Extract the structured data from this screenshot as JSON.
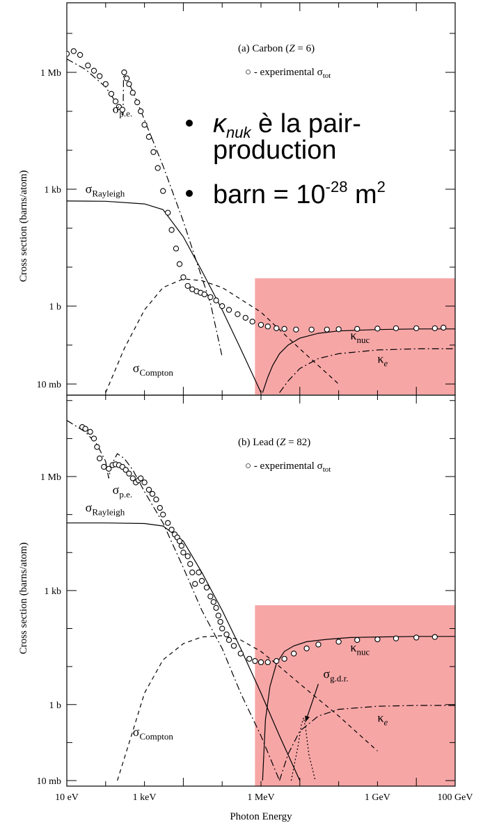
{
  "colors": {
    "highlight": "#f7a1a1",
    "ink": "#000000",
    "background": "#ffffff"
  },
  "bullets": [
    {
      "symbol": "κ",
      "sub": "nuk",
      "text": " è la pair-",
      "line2": "production"
    },
    {
      "text": "barn = 10",
      "sup": "-28",
      "text2": " m",
      "sup2": "2"
    }
  ],
  "x_axis": {
    "label": "Photon Energy",
    "ticks": [
      "10 eV",
      "1 keV",
      "1 MeV",
      "1 GeV",
      "100 GeV"
    ]
  },
  "chart_data": [
    {
      "type": "line",
      "title": "(a) Carbon (Z = 6)",
      "title_parts": {
        "pre": "(a) Carbon (",
        "var": "Z",
        "post": " = 6)"
      },
      "legend": "○  - experimental σ",
      "legend_parts": {
        "marker": "○",
        "text": " - experimental σ",
        "sub": "tot"
      },
      "ylabel": "Cross section  (barns/atom)",
      "xlabel": "Photon Energy",
      "x_scale": "log",
      "y_scale": "log",
      "x_unit": "eV",
      "y_unit": "barns/atom",
      "xlim": [
        10,
        100000000000.0
      ],
      "ylim": [
        0.006,
        4000000.0
      ],
      "y_ticks": [
        {
          "label": "1 Mb",
          "value": 1000000.0
        },
        {
          "label": "1 kb",
          "value": 1000.0
        },
        {
          "label": "1 b",
          "value": 1
        },
        {
          "label": "10 mb",
          "value": 0.01
        }
      ],
      "highlight_x": [
        700000.0,
        100000000000.0
      ],
      "series": [
        {
          "name": "σp.e.",
          "style": "dashdot",
          "x": [
            10,
            30,
            100,
            200,
            280,
            290,
            500,
            1000,
            3000,
            10000,
            20000,
            50000,
            100000
          ],
          "y": [
            2200000,
            1200000,
            420000,
            150000,
            75000,
            950000,
            330000,
            60000,
            4000,
            150,
            18,
            1.2,
            0.05
          ]
        },
        {
          "name": "σRayleigh",
          "style": "solid",
          "x": [
            10,
            100,
            1000,
            3000,
            10000,
            30000,
            100000,
            300000,
            1000000
          ],
          "y": [
            500,
            490,
            420,
            300,
            60,
            8,
            0.8,
            0.08,
            0.006
          ]
        },
        {
          "name": "σCompton",
          "style": "dash",
          "x": [
            100,
            300,
            1000,
            3000,
            10000,
            30000,
            100000,
            300000,
            1000000,
            10000000,
            100000000
          ],
          "y": [
            0.006,
            0.08,
            0.8,
            3,
            5,
            4.5,
            3,
            1.5,
            0.7,
            0.08,
            0.01
          ]
        },
        {
          "name": "κnuc",
          "style": "solid",
          "x": [
            1100000,
            1500000,
            2000000,
            3000000,
            5000000,
            10000000,
            30000000,
            100000000,
            1000000000,
            10000000000,
            100000000000
          ],
          "y": [
            0.006,
            0.015,
            0.03,
            0.06,
            0.1,
            0.15,
            0.2,
            0.23,
            0.25,
            0.26,
            0.26
          ]
        },
        {
          "name": "κe",
          "style": "dashdot",
          "x": [
            3000000,
            5000000,
            10000000,
            30000000,
            100000000,
            1000000000,
            10000000000,
            100000000000
          ],
          "y": [
            0.006,
            0.012,
            0.025,
            0.045,
            0.06,
            0.075,
            0.08,
            0.08
          ]
        },
        {
          "name": "experimental σtot",
          "style": "points",
          "x": [
            10,
            15,
            22,
            35,
            50,
            70,
            100,
            140,
            180,
            220,
            270,
            300,
            350,
            400,
            500,
            650,
            800,
            1000,
            1300,
            1700,
            2200,
            3000,
            4000,
            5000,
            6500,
            8000,
            10000,
            13000,
            17000,
            22000,
            28000,
            35000,
            50000,
            70000,
            100000,
            150000,
            250000,
            400000,
            600000,
            1000000,
            1500000,
            2500000,
            4000000,
            8000000,
            20000000,
            50000000,
            100000000,
            300000000,
            1000000000,
            3000000000,
            10000000000,
            30000000000,
            50000000000
          ],
          "y": [
            3000000,
            3500000,
            2800000,
            1500000,
            1100000,
            800000,
            500000,
            280000,
            180000,
            130000,
            110000,
            1000000,
            700000,
            500000,
            300000,
            170000,
            100000,
            45000,
            22000,
            9000,
            3500,
            900,
            250,
            90,
            30,
            12,
            5.5,
            3.3,
            2.7,
            2.4,
            2.2,
            2,
            1.7,
            1.4,
            1,
            0.8,
            0.62,
            0.5,
            0.4,
            0.33,
            0.3,
            0.27,
            0.26,
            0.25,
            0.25,
            0.25,
            0.255,
            0.26,
            0.265,
            0.27,
            0.27,
            0.27,
            0.28
          ]
        }
      ],
      "labels": [
        {
          "text": "σ",
          "sub": "p.e.",
          "x": 150,
          "y": 90000
        },
        {
          "text": "σ",
          "sub": "Rayleigh",
          "x": 30,
          "y": 800
        },
        {
          "text": "σ",
          "sub": "Compton",
          "x": 500,
          "y": 0.02
        },
        {
          "text": "κ",
          "sub": "nuc",
          "x": 200000000,
          "y": 0.14
        },
        {
          "text": "κ",
          "sub": "e",
          "x": 1000000000,
          "y": 0.035,
          "italic_sub": true
        }
      ]
    },
    {
      "type": "line",
      "title": "(b) Lead (Z = 82)",
      "title_parts": {
        "pre": "(b) Lead (",
        "var": "Z",
        "post": " = 82)"
      },
      "legend": "○  - experimental σ",
      "legend_parts": {
        "marker": "○",
        "text": "  - experimental σ",
        "sub": "tot"
      },
      "ylabel": "Cross section  (barns/atom)",
      "xlabel": "Photon Energy",
      "x_scale": "log",
      "y_scale": "log",
      "x_unit": "eV",
      "y_unit": "barns/atom",
      "xlim": [
        10,
        100000000000.0
      ],
      "ylim": [
        0.01,
        40000000.0
      ],
      "y_ticks": [
        {
          "label": "1 Mb",
          "value": 1000000.0
        },
        {
          "label": "1 kb",
          "value": 1000.0
        },
        {
          "label": "1 b",
          "value": 1
        },
        {
          "label": "10 mb",
          "value": 0.01
        }
      ],
      "highlight_x": [
        700000.0,
        100000000000.0
      ],
      "series": [
        {
          "name": "σp.e.",
          "style": "dashdot",
          "x": [
            10,
            30,
            60,
            100,
            120,
            140,
            200,
            300,
            500,
            1000,
            3000,
            10000,
            30000,
            100000,
            300000,
            1000000,
            3000000
          ],
          "y": [
            30000000,
            15000000,
            7000000,
            2500000,
            900000,
            2000000,
            4000000,
            3000000,
            1500000,
            400000,
            60000,
            4000,
            300,
            30,
            2,
            0.15,
            0.01
          ]
        },
        {
          "name": "σRayleigh",
          "style": "solid",
          "x": [
            10,
            100,
            1000,
            3000,
            10000,
            30000,
            100000,
            300000,
            1000000,
            3000000,
            10000000
          ],
          "y": [
            60000,
            60000,
            58000,
            50000,
            20000,
            3000,
            300,
            30,
            2,
            0.15,
            0.01
          ]
        },
        {
          "name": "σCompton",
          "style": "dash",
          "x": [
            200,
            500,
            1000,
            3000,
            10000,
            30000,
            100000,
            300000,
            1000000,
            3000000,
            10000000,
            100000000,
            1000000000
          ],
          "y": [
            0.01,
            0.2,
            2,
            15,
            40,
            60,
            65,
            50,
            25,
            10,
            3.5,
            0.5,
            0.06
          ]
        },
        {
          "name": "κnuc",
          "style": "solid",
          "x": [
            1100000,
            1300000,
            1700000,
            2500000,
            4000000,
            7000000,
            15000000,
            50000000,
            200000000,
            1000000000,
            10000000000,
            100000000000
          ],
          "y": [
            0.01,
            0.4,
            3,
            12,
            25,
            35,
            45,
            52,
            58,
            60,
            62,
            62
          ]
        },
        {
          "name": "κe",
          "style": "dashdot",
          "x": [
            3000000,
            5000000,
            10000000,
            30000000,
            100000000,
            1000000000,
            10000000000,
            100000000000
          ],
          "y": [
            0.01,
            0.05,
            0.2,
            0.5,
            0.75,
            0.9,
            0.95,
            0.95
          ]
        },
        {
          "name": "σg.d.r.",
          "style": "dot",
          "x": [
            6000000,
            9000000,
            11000000,
            12500000,
            14000000,
            17000000,
            25000000
          ],
          "y": [
            0.01,
            0.08,
            0.3,
            0.45,
            0.25,
            0.05,
            0.01
          ]
        },
        {
          "name": "experimental σtot",
          "style": "points",
          "x": [
            25,
            30,
            40,
            50,
            60,
            70,
            90,
            120,
            150,
            180,
            220,
            270,
            330,
            400,
            500,
            600,
            700,
            800,
            1000,
            1300,
            1600,
            2000,
            2500,
            3000,
            4000,
            5000,
            6000,
            7000,
            8000,
            9000,
            10000,
            13000,
            15000,
            17000,
            20000,
            25000,
            30000,
            40000,
            50000,
            60000,
            70000,
            80000,
            90000,
            100000,
            130000,
            150000,
            200000,
            300000,
            500000,
            700000,
            1000000,
            1500000,
            2500000,
            4000000,
            7000000,
            15000000,
            30000000,
            100000000,
            300000000,
            1000000000,
            3000000000,
            10000000000,
            30000000000
          ],
          "y": [
            20000000,
            18000000,
            15000000,
            10000000,
            6000000,
            3000000,
            1800000,
            1600000,
            2000000,
            2100000,
            2000000,
            1800000,
            1500000,
            1200000,
            900000,
            700000,
            800000,
            900000,
            700000,
            450000,
            350000,
            250000,
            150000,
            100000,
            60000,
            40000,
            30000,
            25000,
            20000,
            15000,
            10000,
            8000,
            5000,
            3000,
            1500,
            3000,
            1800,
            1200,
            700,
            500,
            350,
            220,
            150,
            100,
            70,
            50,
            35,
            22,
            16,
            14,
            13,
            13,
            14,
            16,
            22,
            30,
            38,
            45,
            50,
            52,
            55,
            58,
            60
          ]
        }
      ],
      "labels": [
        {
          "text": "σ",
          "sub": "p.e.",
          "x": 150,
          "y": 350000
        },
        {
          "text": "σ",
          "sub": "Rayleigh",
          "x": 30,
          "y": 120000
        },
        {
          "text": "σ",
          "sub": "Compton",
          "x": 500,
          "y": 0.15
        },
        {
          "text": "κ",
          "sub": "nuc",
          "x": 200000000,
          "y": 25
        },
        {
          "text": "κ",
          "sub": "e",
          "x": 1000000000,
          "y": 0.35,
          "italic_sub": true
        },
        {
          "text": "σ",
          "sub": "g.d.r.",
          "x": 40000000,
          "y": 5
        }
      ]
    }
  ]
}
